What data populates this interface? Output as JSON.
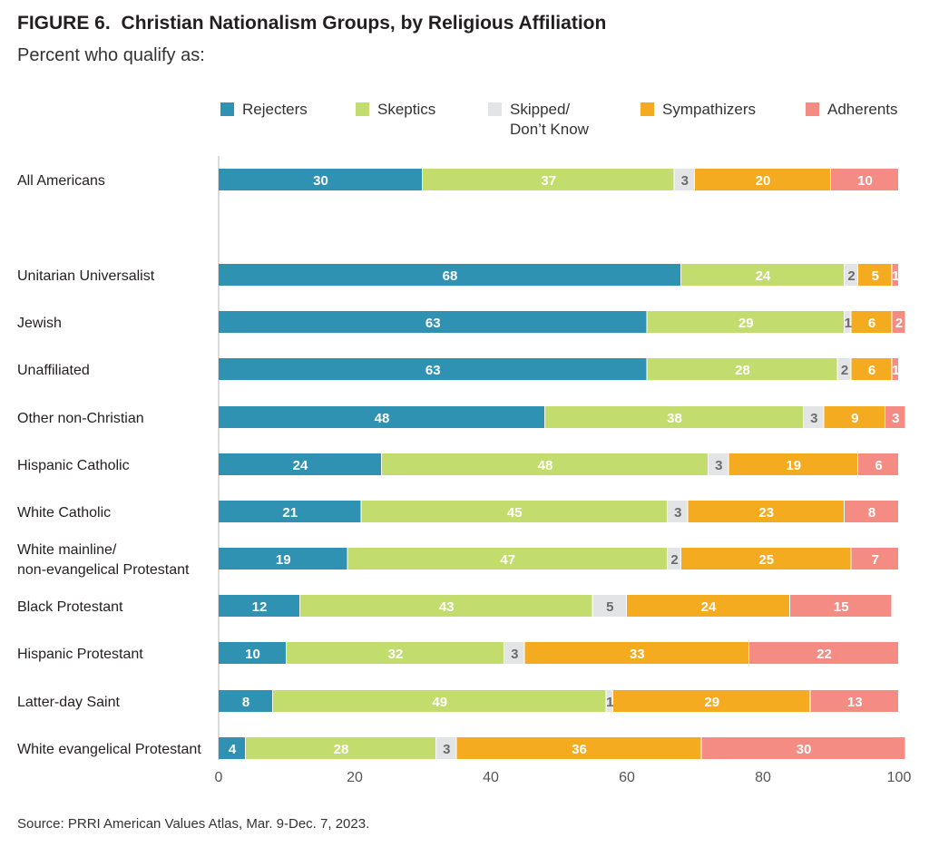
{
  "header": {
    "figure_label": "FIGURE 6.",
    "title": "Christian Nationalism Groups, by Religious Affiliation",
    "subtitle": "Percent who qualify as:"
  },
  "footer": {
    "source": "Source: PRRI American Values Atlas, Mar. 9-Dec. 7, 2023."
  },
  "chart_data": {
    "type": "bar",
    "orientation": "horizontal",
    "stacked": true,
    "title": "Christian Nationalism Groups, by Religious Affiliation",
    "subtitle": "Percent who qualify as:",
    "xlim": [
      0,
      100
    ],
    "xticks": [
      "0",
      "20",
      "40",
      "60",
      "80",
      "100"
    ],
    "grid": false,
    "legend_position": "top",
    "legend": [
      {
        "lines": [
          "Rejecters"
        ],
        "color": "#2f92b2"
      },
      {
        "lines": [
          "Skeptics"
        ],
        "color": "#c3dc6e"
      },
      {
        "lines": [
          "Skipped/",
          "Don’t Know"
        ],
        "color": "#e3e4e5"
      },
      {
        "lines": [
          "Sympathizers"
        ],
        "color": "#f5ab1f"
      },
      {
        "lines": [
          "Adherents"
        ],
        "color": "#f48c83"
      }
    ],
    "categories": [
      [
        "All Americans"
      ],
      [
        "Unitarian Universalist"
      ],
      [
        "Jewish"
      ],
      [
        "Unaffiliated"
      ],
      [
        "Other non-Christian"
      ],
      [
        "Hispanic Catholic"
      ],
      [
        "White Catholic"
      ],
      [
        "White mainline/",
        "non-evangelical Protestant"
      ],
      [
        "Black Protestant"
      ],
      [
        "Hispanic Protestant"
      ],
      [
        "Latter-day Saint"
      ],
      [
        "White evangelical Protestant"
      ]
    ],
    "series": [
      {
        "name": "Rejecters",
        "values": [
          30,
          68,
          63,
          63,
          48,
          24,
          21,
          19,
          12,
          10,
          8,
          4
        ]
      },
      {
        "name": "Skeptics",
        "values": [
          37,
          24,
          29,
          28,
          38,
          48,
          45,
          47,
          43,
          32,
          49,
          28
        ]
      },
      {
        "name": "Skipped/Don’t Know",
        "values": [
          3,
          2,
          1,
          2,
          3,
          3,
          3,
          2,
          5,
          3,
          1,
          3
        ]
      },
      {
        "name": "Sympathizers",
        "values": [
          20,
          5,
          6,
          6,
          9,
          19,
          23,
          25,
          24,
          33,
          29,
          36
        ]
      },
      {
        "name": "Adherents",
        "values": [
          10,
          1,
          2,
          1,
          3,
          6,
          8,
          7,
          15,
          22,
          13,
          30
        ]
      }
    ],
    "label_colors": [
      "#ffffff",
      "#ffffff",
      "#6b6b6b",
      "#ffffff",
      "#ffffff"
    ]
  }
}
